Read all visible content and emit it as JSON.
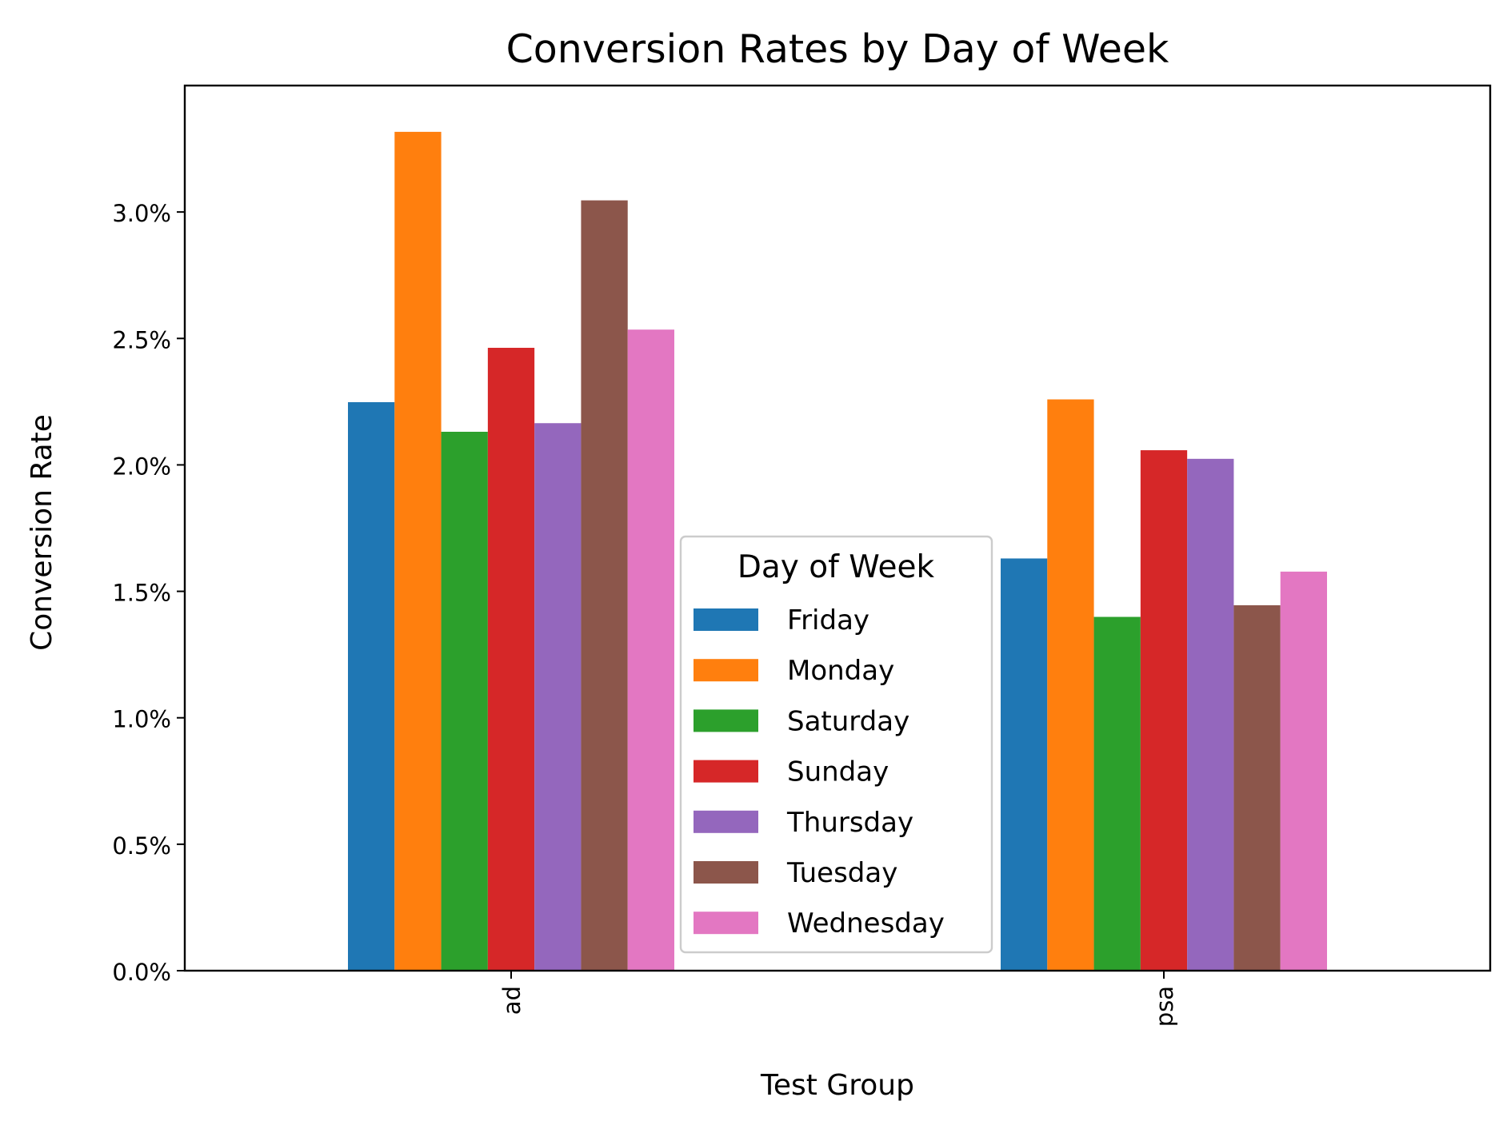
{
  "chart_data": {
    "type": "bar",
    "title": "Conversion Rates by Day of Week",
    "xlabel": "Test Group",
    "ylabel": "Conversion Rate",
    "categories": [
      "ad",
      "psa"
    ],
    "ylim": [
      0,
      0.035
    ],
    "yticks": [
      0.0,
      0.005,
      0.01,
      0.015,
      0.02,
      0.025,
      0.03
    ],
    "ytick_labels": [
      "0.0%",
      "0.5%",
      "1.0%",
      "1.5%",
      "2.0%",
      "2.5%",
      "3.0%"
    ],
    "grid": false,
    "legend": {
      "title": "Day of Week",
      "placement": "lower-center"
    },
    "series": [
      {
        "name": "Friday",
        "color": "#1f77b4",
        "values": [
          0.02248,
          0.0163
        ]
      },
      {
        "name": "Monday",
        "color": "#ff7f0e",
        "values": [
          0.03317,
          0.02259
        ]
      },
      {
        "name": "Saturday",
        "color": "#2ca02c",
        "values": [
          0.02131,
          0.01399
        ]
      },
      {
        "name": "Sunday",
        "color": "#d62728",
        "values": [
          0.02463,
          0.02058
        ]
      },
      {
        "name": "Thursday",
        "color": "#9467bd",
        "values": [
          0.02165,
          0.02024
        ]
      },
      {
        "name": "Tuesday",
        "color": "#8c564b",
        "values": [
          0.03046,
          0.01445
        ]
      },
      {
        "name": "Wednesday",
        "color": "#e377c2",
        "values": [
          0.02535,
          0.01578
        ]
      }
    ]
  }
}
